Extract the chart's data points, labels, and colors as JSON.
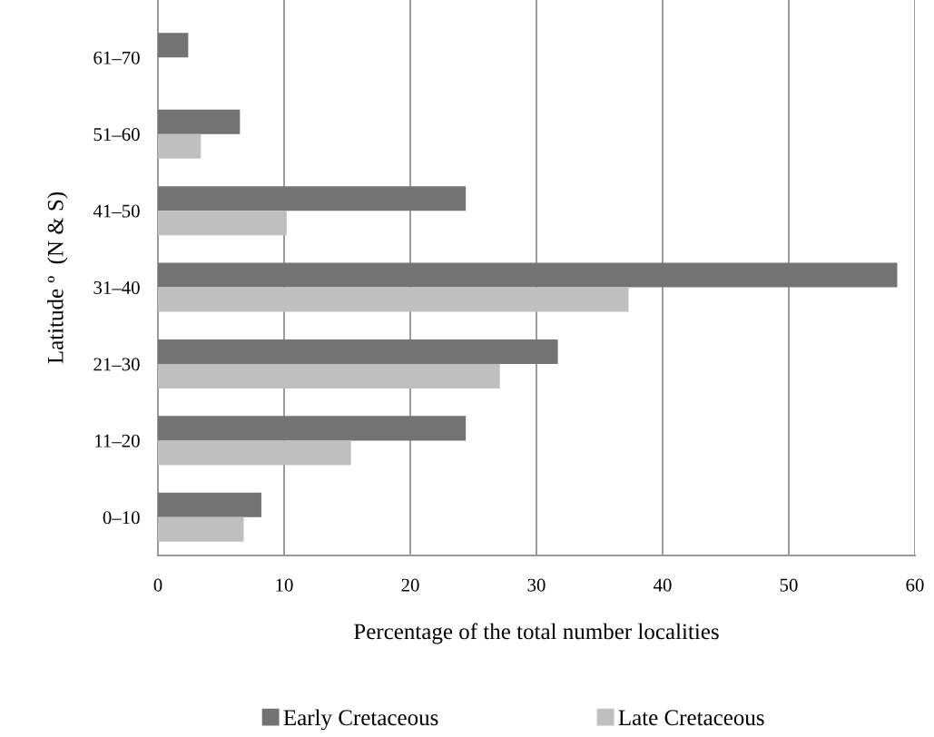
{
  "chart_data": {
    "type": "bar",
    "orientation": "horizontal",
    "xlabel": "Percentage of the total number localities",
    "ylabel": "Latitude º  (N & S)",
    "categories": [
      "61–70",
      "51–60",
      "41–50",
      "31–40",
      "21–30",
      "11–20",
      "0–10"
    ],
    "series": [
      {
        "name": "Early Cretaceous",
        "color": "#737373",
        "values": [
          2.4,
          6.5,
          24.4,
          58.6,
          31.7,
          24.4,
          8.2
        ]
      },
      {
        "name": "Late Cretaceous",
        "color": "#bfbfbf",
        "values": [
          0,
          3.4,
          10.2,
          37.3,
          27.1,
          15.3,
          6.8
        ]
      }
    ],
    "xlim": [
      0,
      60
    ],
    "xticks": [
      0,
      10,
      20,
      30,
      40,
      50,
      60
    ],
    "grid": "x",
    "legend": "bottom"
  }
}
